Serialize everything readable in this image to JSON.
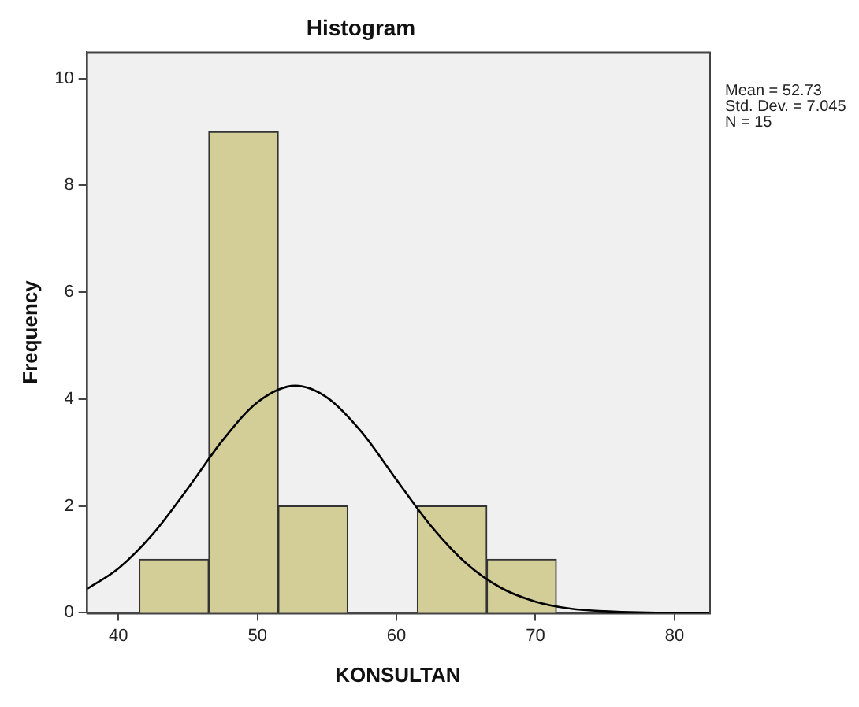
{
  "chart_data": {
    "type": "histogram",
    "title": "Histogram",
    "xlabel": "KONSULTAN",
    "ylabel": "Frequency",
    "bins": [
      41.5,
      46.5,
      51.5,
      56.5,
      61.5,
      66.5,
      71.5
    ],
    "series": [
      {
        "color": "#d3ce97",
        "values": [
          1,
          9,
          2,
          0,
          2,
          1
        ]
      },
      {
        "type": "line",
        "color": "#000000",
        "x": [
          37.7,
          40,
          42.5,
          45,
          47.5,
          50,
          52.73,
          55,
          57.5,
          60,
          62.5,
          65,
          67.5,
          70,
          72.5,
          75,
          80,
          82.5
        ],
        "values": [
          0.44,
          0.83,
          1.48,
          2.33,
          3.23,
          3.94,
          4.25,
          4.03,
          3.38,
          2.49,
          1.62,
          0.93,
          0.47,
          0.21,
          0.08,
          0.03,
          0,
          0
        ]
      }
    ],
    "xlim": [
      37.7,
      82.5
    ],
    "xticks": [
      40,
      50,
      60,
      70,
      80
    ],
    "ylim": [
      0,
      10.5
    ],
    "yticks": [
      0,
      2,
      4,
      6,
      8,
      10
    ],
    "grid": false,
    "legend": false,
    "marker": "none",
    "line_style": "solid",
    "annotations": [
      "Mean = 52.73",
      "Std. Dev. = 7.045",
      "N = 15"
    ]
  }
}
